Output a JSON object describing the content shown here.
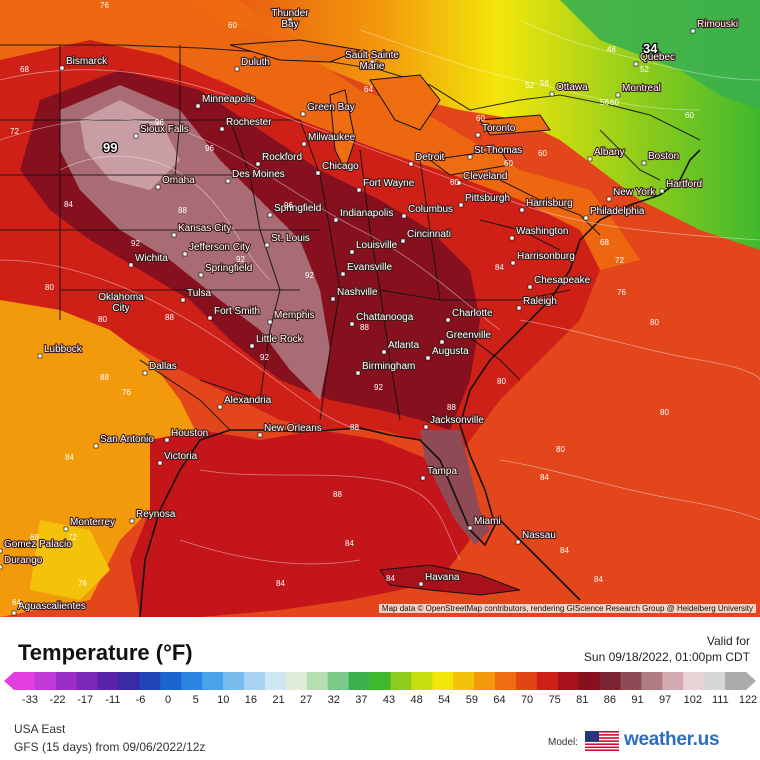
{
  "legend": {
    "title": "Temperature (°F)",
    "valid_for": "Valid for",
    "valid_time": "Sun 09/18/2022, 01:00pm CDT",
    "region": "USA East",
    "model_run": "GFS (15 days) from  09/06/2022/12z",
    "model_label": "Model:",
    "brand": "weather.us",
    "ticks": [
      "-33",
      "-22",
      "-17",
      "-11",
      "-6",
      "0",
      "5",
      "10",
      "16",
      "21",
      "27",
      "32",
      "37",
      "43",
      "48",
      "54",
      "59",
      "64",
      "70",
      "75",
      "81",
      "86",
      "91",
      "97",
      "102",
      "111",
      "122"
    ],
    "colors": [
      "#e23ee0",
      "#c03ad8",
      "#9a2fc6",
      "#7a27b8",
      "#5a22a8",
      "#3a2aa6",
      "#2146b8",
      "#1a64d0",
      "#2a86e2",
      "#4aa3ea",
      "#79bdef",
      "#a7d3f2",
      "#cfe6f3",
      "#e0ecd8",
      "#b6dfb4",
      "#7ac88a",
      "#3bb04e",
      "#40b82c",
      "#8ccc1c",
      "#c9de0e",
      "#f3e60a",
      "#f5c20a",
      "#f39a0c",
      "#ee6d10",
      "#e44414",
      "#cf2018",
      "#a8101a",
      "#86101e",
      "#7a2430",
      "#8e4a55",
      "#b07c84",
      "#d0aab0",
      "#e8d4d6",
      "#d6d6d6",
      "#ababab"
    ]
  },
  "map": {
    "attribution": "Map data © OpenStreetMap contributors, rendering GIScience Research Group @ Heidelberg University",
    "max_label": "99",
    "min_label": "34",
    "colors": {
      "gulf": "#c4161a",
      "atlantic": "#e3461a",
      "hot_core": "#9e1a24",
      "extreme": "#b07c84",
      "warm": "#ee7a18",
      "north_cool": "#c9de0e",
      "northeast_green": "#3bb04e",
      "border": "#111111"
    },
    "cities": [
      {
        "name": "Thunder Bay",
        "multi": [
          "Thunder",
          "Bay"
        ]
      },
      {
        "name": "Bismarck"
      },
      {
        "name": "Duluth"
      },
      {
        "name": "Sault Sainte Marie",
        "multi": [
          "Sault Sainte",
          "Marie"
        ]
      },
      {
        "name": "Rimouski"
      },
      {
        "name": "Quebec"
      },
      {
        "name": "Ottawa"
      },
      {
        "name": "Montreal"
      },
      {
        "name": "Minneapolis"
      },
      {
        "name": "Green Bay"
      },
      {
        "name": "Sioux Falls"
      },
      {
        "name": "Rochester"
      },
      {
        "name": "Milwaukee"
      },
      {
        "name": "Toronto"
      },
      {
        "name": "Albany"
      },
      {
        "name": "Boston"
      },
      {
        "name": "St Thomas"
      },
      {
        "name": "Rockford"
      },
      {
        "name": "Detroit"
      },
      {
        "name": "Chicago"
      },
      {
        "name": "Des Moines"
      },
      {
        "name": "Omaha"
      },
      {
        "name": "Cleveland"
      },
      {
        "name": "Hartford"
      },
      {
        "name": "Fort Wayne"
      },
      {
        "name": "New York"
      },
      {
        "name": "Pittsburgh"
      },
      {
        "name": "Harrisburg"
      },
      {
        "name": "Philadelphia"
      },
      {
        "name": "Springfield"
      },
      {
        "name": "Indianapolis"
      },
      {
        "name": "Columbus"
      },
      {
        "name": "Kansas City"
      },
      {
        "name": "St. Louis"
      },
      {
        "name": "Cincinnati"
      },
      {
        "name": "Washington"
      },
      {
        "name": "Jefferson City"
      },
      {
        "name": "Louisville"
      },
      {
        "name": "Wichita"
      },
      {
        "name": "Harrisonburg"
      },
      {
        "name": "Springfield"
      },
      {
        "name": "Evansville"
      },
      {
        "name": "Chesapeake"
      },
      {
        "name": "Tulsa"
      },
      {
        "name": "Oklahoma City",
        "multi": [
          "Oklahoma",
          "City"
        ]
      },
      {
        "name": "Nashville"
      },
      {
        "name": "Raleigh"
      },
      {
        "name": "Fort Smith"
      },
      {
        "name": "Memphis"
      },
      {
        "name": "Chattanooga"
      },
      {
        "name": "Charlotte"
      },
      {
        "name": "Lubbock"
      },
      {
        "name": "Little Rock"
      },
      {
        "name": "Greenville"
      },
      {
        "name": "Atlanta"
      },
      {
        "name": "Augusta"
      },
      {
        "name": "Birmingham"
      },
      {
        "name": "Dallas"
      },
      {
        "name": "Alexandria"
      },
      {
        "name": "New Orleans"
      },
      {
        "name": "Jacksonville"
      },
      {
        "name": "San Antonio"
      },
      {
        "name": "Houston"
      },
      {
        "name": "Victoria"
      },
      {
        "name": "Tampa"
      },
      {
        "name": "Monterrey"
      },
      {
        "name": "Reynosa"
      },
      {
        "name": "Miami"
      },
      {
        "name": "Nassau"
      },
      {
        "name": "Gomez Palacio"
      },
      {
        "name": "Havana"
      },
      {
        "name": "Durango"
      },
      {
        "name": "Aguascalientes"
      }
    ],
    "isotherm_labels": [
      "76",
      "60",
      "56",
      "60",
      "48",
      "52",
      "52",
      "64",
      "68",
      "60",
      "60",
      "60",
      "56",
      "60",
      "60",
      "68",
      "72",
      "76",
      "80",
      "80",
      "80",
      "84",
      "84",
      "84",
      "84",
      "84",
      "88",
      "88",
      "92",
      "92",
      "96",
      "96",
      "92",
      "88",
      "88",
      "84",
      "80",
      "76",
      "80",
      "72",
      "68",
      "72",
      "76",
      "64",
      "84",
      "88",
      "88",
      "92",
      "96",
      "92",
      "88",
      "84",
      "80",
      "84"
    ]
  }
}
